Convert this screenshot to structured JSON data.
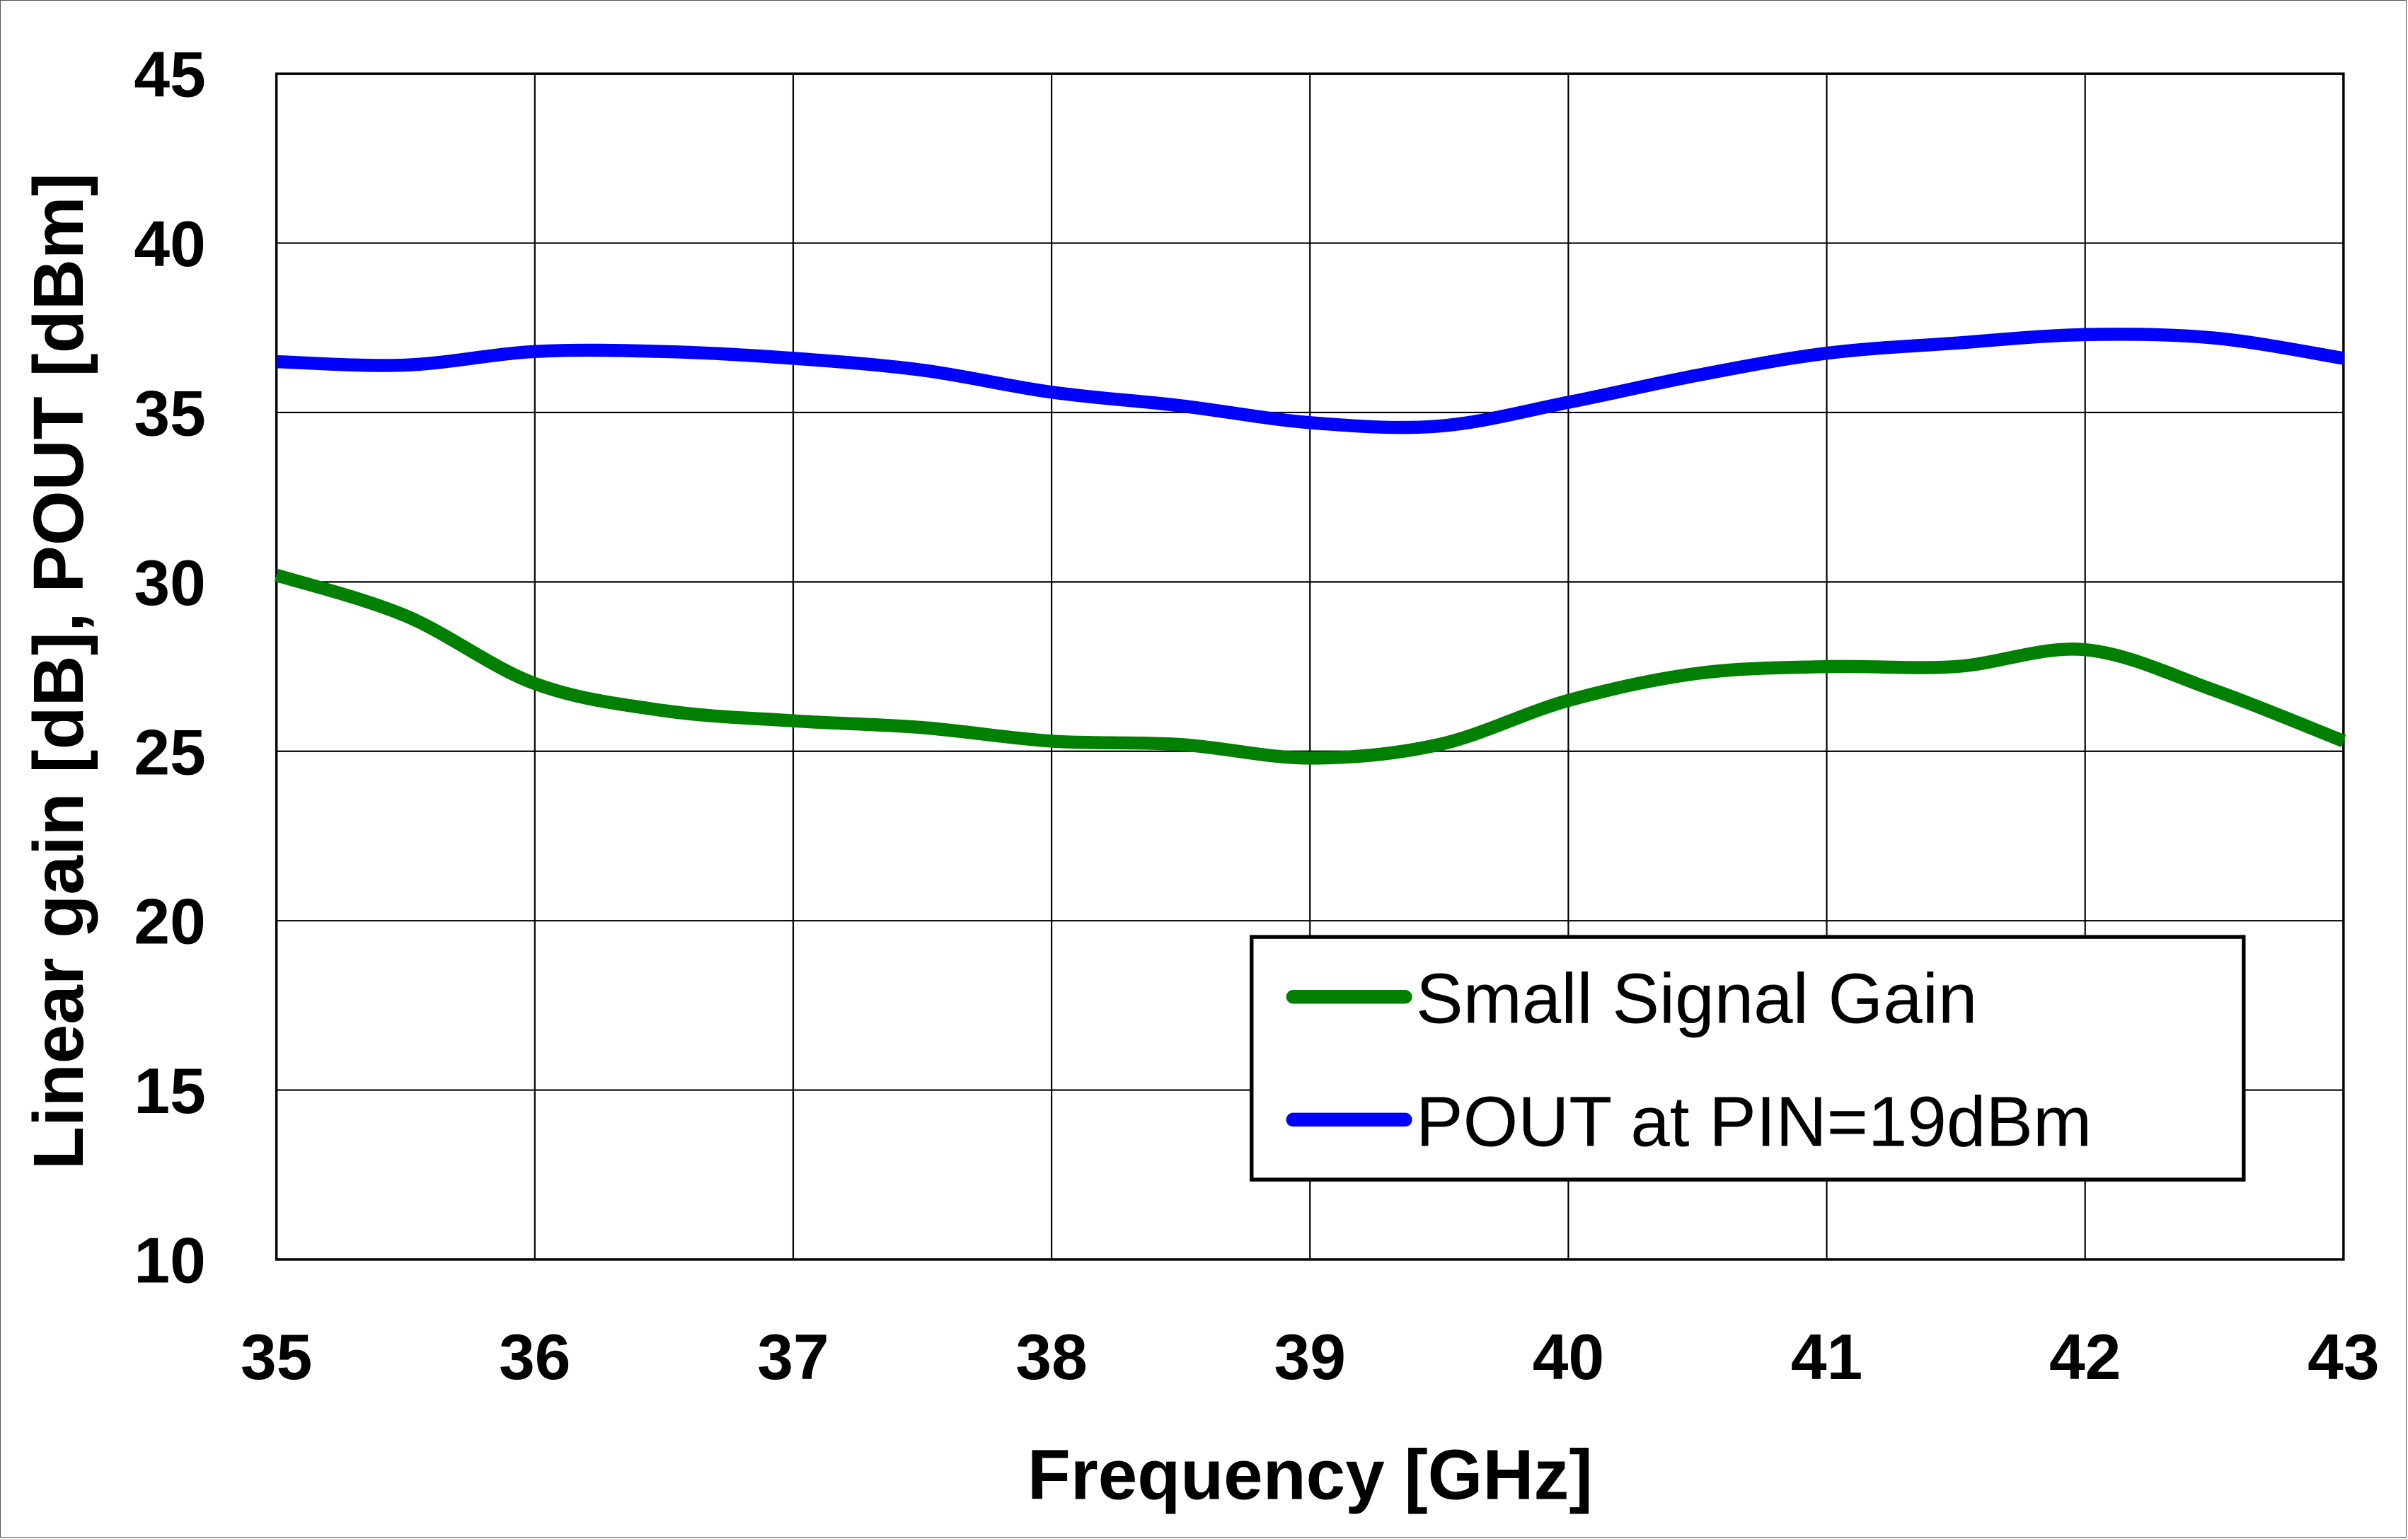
{
  "chart_data": {
    "type": "line",
    "title": "",
    "xlabel": "Frequency [GHz]",
    "ylabel": "Linear gain [dB], POUT [dBm]",
    "xlim": [
      35,
      43
    ],
    "ylim": [
      10,
      45
    ],
    "x_ticks": [
      "35",
      "36",
      "37",
      "38",
      "39",
      "40",
      "41",
      "42",
      "43"
    ],
    "y_ticks": [
      "45",
      "40",
      "35",
      "30",
      "25",
      "20",
      "15",
      "10"
    ],
    "grid": true,
    "legend_position": "lower right (inside plot)",
    "x": [
      35,
      35.5,
      36,
      36.5,
      37,
      37.5,
      38,
      38.5,
      39,
      39.5,
      40,
      40.5,
      41,
      41.5,
      42,
      42.5,
      43
    ],
    "series": [
      {
        "name": "Small Signal Gain",
        "color": "#008000",
        "values": [
          30.2,
          29.0,
          27.0,
          26.2,
          25.9,
          25.7,
          25.3,
          25.2,
          24.8,
          25.2,
          26.5,
          27.3,
          27.5,
          27.5,
          28.0,
          26.8,
          25.3
        ]
      },
      {
        "name": "POUT at PIN=19dBm",
        "color": "#0000FF",
        "values": [
          36.5,
          36.4,
          36.8,
          36.8,
          36.6,
          36.25,
          35.6,
          35.2,
          34.7,
          34.6,
          35.3,
          36.1,
          36.75,
          37.05,
          37.3,
          37.2,
          36.6
        ]
      }
    ]
  },
  "legend": {
    "items": [
      {
        "label": "Small Signal Gain",
        "color": "#008000"
      },
      {
        "label": "POUT at PIN=19dBm",
        "color": "#0000FF"
      }
    ]
  }
}
